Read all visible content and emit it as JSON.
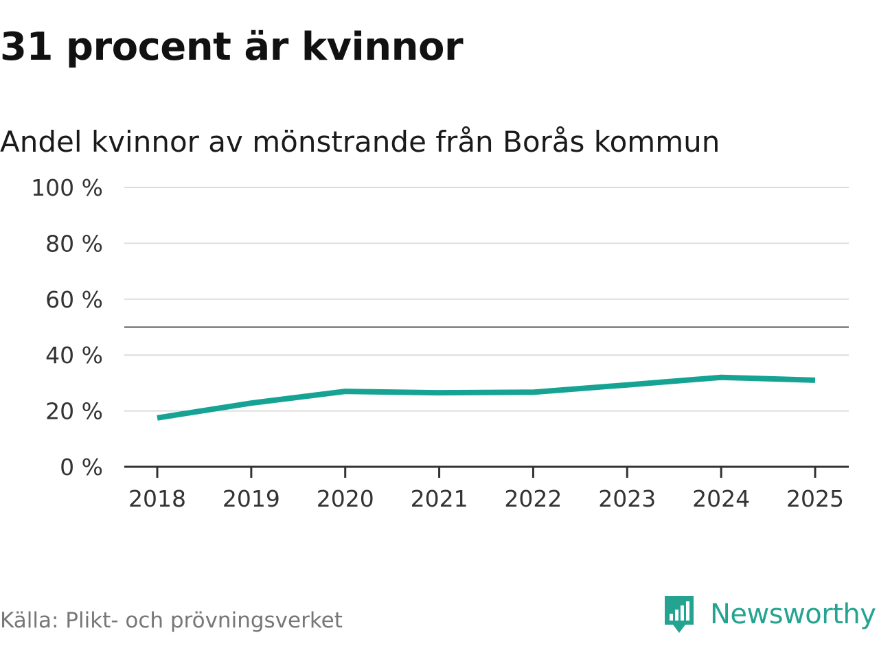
{
  "header": {
    "title": "31 procent är kvinnor",
    "subtitle": "Andel kvinnor av mönstrande från Borås kommun"
  },
  "chart_data": {
    "type": "line",
    "title": "31 procent är kvinnor",
    "subtitle": "Andel kvinnor av mönstrande från Borås kommun",
    "x": [
      "2018",
      "2019",
      "2020",
      "2021",
      "2022",
      "2023",
      "2024",
      "2025"
    ],
    "series": [
      {
        "name": "Andel kvinnor",
        "values": [
          17.5,
          22.8,
          27.0,
          26.5,
          26.7,
          29.3,
          32.0,
          31.0
        ]
      }
    ],
    "ylim": [
      0,
      100
    ],
    "yticks": [
      0,
      20,
      40,
      60,
      80,
      100
    ],
    "ytick_labels": [
      "0 %",
      "20 %",
      "40 %",
      "60 %",
      "80 %",
      "100 %"
    ],
    "reference_line": 50,
    "grid": true,
    "xlabel": "",
    "ylabel": "",
    "line_color": "#16a394"
  },
  "footer": {
    "source": "Källa: Plikt- och prövningsverket",
    "brand": "Newsworthy",
    "brand_icon": "newsworthy-logo-icon",
    "brand_color": "#24a390"
  }
}
